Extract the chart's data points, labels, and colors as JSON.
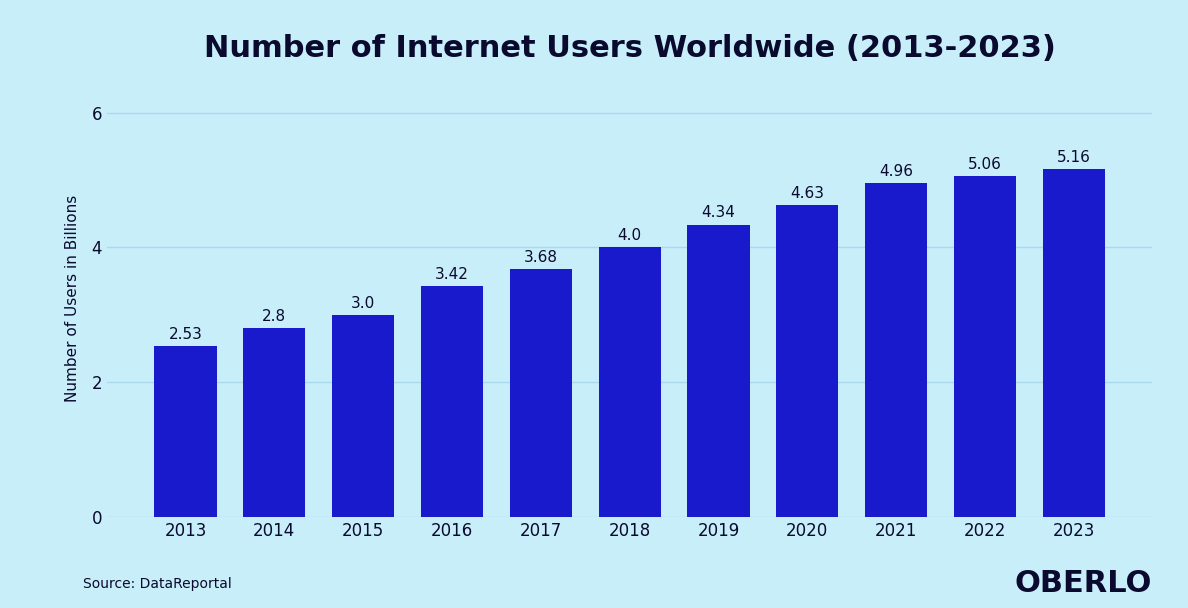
{
  "title": "Number of Internet Users Worldwide (2013-2023)",
  "ylabel": "Number of Users in Billions",
  "years": [
    2013,
    2014,
    2015,
    2016,
    2017,
    2018,
    2019,
    2020,
    2021,
    2022,
    2023
  ],
  "values": [
    2.53,
    2.8,
    3.0,
    3.42,
    3.68,
    4.0,
    4.34,
    4.63,
    4.96,
    5.06,
    5.16
  ],
  "bar_color": "#1a1acd",
  "background_color": "#c8eefa",
  "grid_color": "#aad8ec",
  "text_color": "#0a0a2e",
  "ylim": [
    0,
    6.5
  ],
  "yticks": [
    0,
    2,
    4,
    6
  ],
  "source_text": "Source: DataReportal",
  "brand_text": "OBERLO",
  "title_fontsize": 22,
  "label_fontsize": 11,
  "tick_fontsize": 12,
  "annotation_fontsize": 11,
  "bar_width": 0.7
}
